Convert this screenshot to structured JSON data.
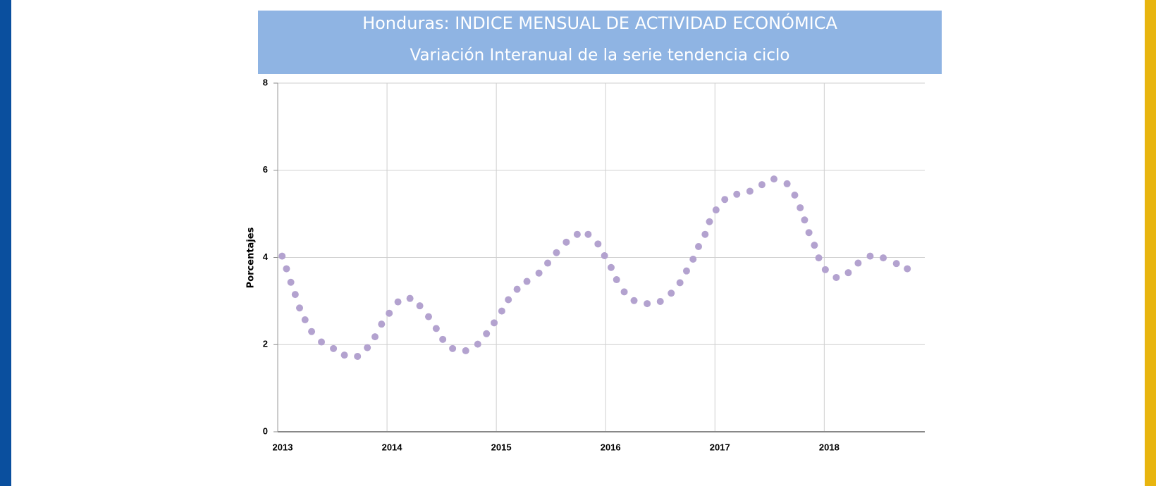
{
  "chart_data": {
    "type": "scatter",
    "title": "Honduras: INDICE MENSUAL DE ACTIVIDAD ECONÓMICA",
    "subtitle": "Variación Interanual de la serie tendencia ciclo",
    "y_label": "Porcentajes",
    "color": "#b3a2cf",
    "x": [
      2013.04,
      2013.08,
      2013.12,
      2013.16,
      2013.2,
      2013.25,
      2013.31,
      2013.4,
      2013.51,
      2013.61,
      2013.73,
      2013.82,
      2013.89,
      2013.95,
      2014.02,
      2014.1,
      2014.21,
      2014.3,
      2014.38,
      2014.45,
      2014.51,
      2014.6,
      2014.72,
      2014.83,
      2014.91,
      2014.98,
      2015.05,
      2015.11,
      2015.19,
      2015.28,
      2015.39,
      2015.47,
      2015.55,
      2015.64,
      2015.74,
      2015.84,
      2015.93,
      2015.99,
      2016.05,
      2016.1,
      2016.17,
      2016.26,
      2016.38,
      2016.5,
      2016.6,
      2016.68,
      2016.74,
      2016.8,
      2016.85,
      2016.91,
      2016.95,
      2017.01,
      2017.09,
      2017.2,
      2017.32,
      2017.43,
      2017.54,
      2017.66,
      2017.73,
      2017.78,
      2017.82,
      2017.86,
      2017.91,
      2017.95,
      2018.01,
      2018.11,
      2018.22,
      2018.31,
      2018.42,
      2018.54,
      2018.66,
      2018.76
    ],
    "values": [
      4.03,
      3.74,
      3.43,
      3.15,
      2.84,
      2.57,
      2.3,
      2.06,
      1.91,
      1.76,
      1.73,
      1.93,
      2.18,
      2.47,
      2.72,
      2.98,
      3.06,
      2.89,
      2.64,
      2.37,
      2.12,
      1.91,
      1.86,
      2.01,
      2.25,
      2.5,
      2.77,
      3.03,
      3.27,
      3.45,
      3.64,
      3.87,
      4.11,
      4.35,
      4.53,
      4.53,
      4.31,
      4.04,
      3.77,
      3.49,
      3.21,
      3.01,
      2.94,
      2.99,
      3.18,
      3.42,
      3.69,
      3.96,
      4.25,
      4.53,
      4.82,
      5.09,
      5.33,
      5.45,
      5.52,
      5.67,
      5.8,
      5.69,
      5.43,
      5.14,
      4.86,
      4.57,
      4.28,
      3.99,
      3.72,
      3.54,
      3.65,
      3.87,
      4.03,
      3.99,
      3.86,
      3.74
    ],
    "xlim": [
      2013,
      2018.92
    ],
    "xticks": [
      2013,
      2014,
      2015,
      2016,
      2017,
      2018
    ],
    "ylim": [
      0,
      8
    ],
    "yticks": [
      0,
      2,
      4,
      6,
      8
    ],
    "grid": true
  }
}
